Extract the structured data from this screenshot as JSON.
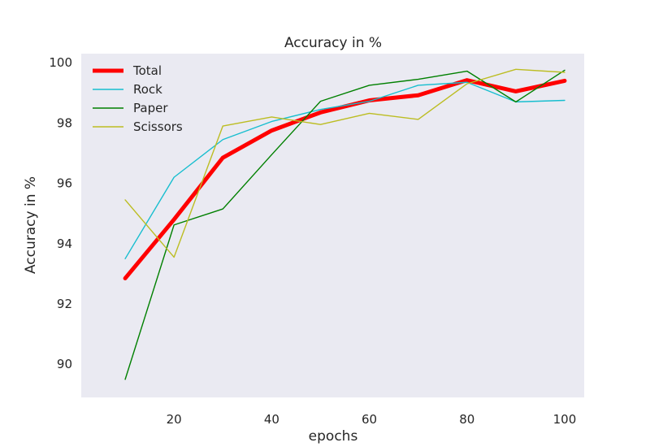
{
  "chart_data": {
    "type": "line",
    "title": "Accuracy in %",
    "xlabel": "epochs",
    "ylabel": "Accuracy in %",
    "x": [
      10,
      20,
      30,
      40,
      50,
      60,
      70,
      80,
      90,
      100
    ],
    "xlim": [
      1,
      104
    ],
    "ylim": [
      88.9,
      100.3
    ],
    "xticks": [
      "20",
      "40",
      "60",
      "80",
      "100"
    ],
    "yticks": [
      "90",
      "92",
      "94",
      "96",
      "98",
      "100"
    ],
    "grid": false,
    "background": "#eaeaf2",
    "legend_position": "upper-left",
    "series": [
      {
        "name": "Total",
        "color": "#ff0000",
        "width": "thick",
        "values": [
          92.85,
          94.8,
          96.85,
          97.75,
          98.35,
          98.75,
          98.92,
          99.42,
          99.05,
          99.4
        ]
      },
      {
        "name": "Rock",
        "color": "#17becf",
        "width": "thin",
        "values": [
          93.5,
          96.2,
          97.45,
          98.05,
          98.45,
          98.72,
          99.25,
          99.35,
          98.7,
          98.75
        ]
      },
      {
        "name": "Paper",
        "color": "#008000",
        "width": "thin",
        "values": [
          89.5,
          94.62,
          95.15,
          96.95,
          98.72,
          99.25,
          99.45,
          99.72,
          98.7,
          99.75
        ]
      },
      {
        "name": "Scissors",
        "color": "#bcbd22",
        "width": "thin",
        "values": [
          95.45,
          93.55,
          97.9,
          98.2,
          97.95,
          98.32,
          98.12,
          99.3,
          99.78,
          99.68
        ]
      }
    ]
  }
}
